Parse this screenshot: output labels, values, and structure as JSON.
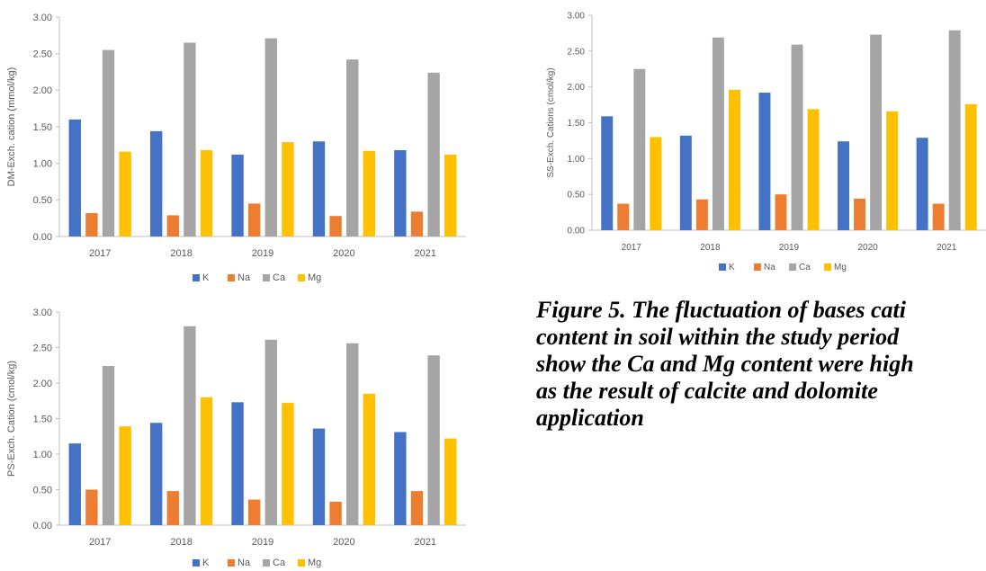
{
  "colors": {
    "K": "#4472c4",
    "Na": "#ed7d31",
    "Ca": "#a5a5a5",
    "Mg": "#ffc000",
    "axis_text": "#595959",
    "axis_line": "#bfbfbf"
  },
  "caption": "Figure 5. The fluctuation of bases cati\ncontent in soil within the study period\nshow the Ca and Mg content were high\nas the result of calcite and dolomite\napplication",
  "chart_data": [
    {
      "id": "dm",
      "type": "bar",
      "title": "",
      "categories": [
        "2017",
        "2018",
        "2019",
        "2020",
        "2021"
      ],
      "ylabel": "DM-Exch. cation (mmol/kg)",
      "xlabel": "",
      "ylim": [
        0,
        3.0
      ],
      "yticks": [
        "0.00",
        "0.50",
        "1.00",
        "1.50",
        "2.00",
        "2.50",
        "3.00"
      ],
      "grid": false,
      "legend": "bottom",
      "series": [
        {
          "name": "K",
          "values": [
            1.6,
            1.44,
            1.12,
            1.3,
            1.18
          ]
        },
        {
          "name": "Na",
          "values": [
            0.32,
            0.29,
            0.45,
            0.28,
            0.34
          ]
        },
        {
          "name": "Ca",
          "values": [
            2.55,
            2.65,
            2.71,
            2.42,
            2.24
          ]
        },
        {
          "name": "Mg",
          "values": [
            1.16,
            1.18,
            1.29,
            1.17,
            1.12
          ]
        }
      ]
    },
    {
      "id": "ss",
      "type": "bar",
      "title": "",
      "categories": [
        "2017",
        "2018",
        "2019",
        "2020",
        "2021"
      ],
      "ylabel": "SS-Exch. Cations (cmol/kg)",
      "xlabel": "",
      "ylim": [
        0,
        3.0
      ],
      "yticks": [
        "0.00",
        "0.50",
        "1.00",
        "1.50",
        "2.00",
        "2.50",
        "3.00"
      ],
      "grid": false,
      "legend": "bottom",
      "series": [
        {
          "name": "K",
          "values": [
            1.59,
            1.32,
            1.92,
            1.24,
            1.29
          ]
        },
        {
          "name": "Na",
          "values": [
            0.37,
            0.43,
            0.5,
            0.44,
            0.37
          ]
        },
        {
          "name": "Ca",
          "values": [
            2.25,
            2.69,
            2.59,
            2.73,
            2.79
          ]
        },
        {
          "name": "Mg",
          "values": [
            1.3,
            1.96,
            1.69,
            1.66,
            1.76
          ]
        }
      ]
    },
    {
      "id": "ps",
      "type": "bar",
      "title": "",
      "categories": [
        "2017",
        "2018",
        "2019",
        "2020",
        "2021"
      ],
      "ylabel": "PS-Exch. Cation (cmol/kg)",
      "xlabel": "",
      "ylim": [
        0,
        3.0
      ],
      "yticks": [
        "0.00",
        "0.50",
        "1.00",
        "1.50",
        "2.00",
        "2.50",
        "3.00"
      ],
      "grid": false,
      "legend": "bottom",
      "series": [
        {
          "name": "K",
          "values": [
            1.15,
            1.44,
            1.73,
            1.36,
            1.31
          ]
        },
        {
          "name": "Na",
          "values": [
            0.5,
            0.48,
            0.36,
            0.33,
            0.48
          ]
        },
        {
          "name": "Ca",
          "values": [
            2.24,
            2.8,
            2.61,
            2.56,
            2.39
          ]
        },
        {
          "name": "Mg",
          "values": [
            1.39,
            1.8,
            1.72,
            1.85,
            1.22
          ]
        }
      ]
    }
  ]
}
